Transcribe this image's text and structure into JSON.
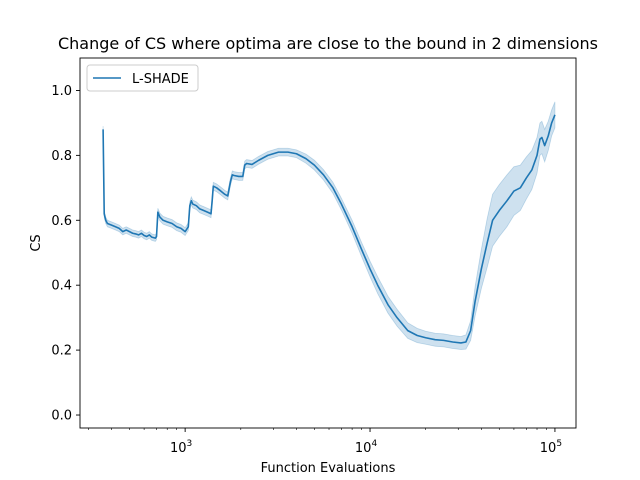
{
  "chart_data": {
    "type": "line",
    "title": "Change of CS where optima are close to the bound in 2 dimensions",
    "xlabel": "Function Evaluations",
    "ylabel": "CS",
    "xscale": "log",
    "xlim": [
      270,
      130000
    ],
    "ylim": [
      -0.04,
      1.1
    ],
    "grid": false,
    "legend_position": "top-left",
    "x_ticks": [
      {
        "value": 1000,
        "base": "10",
        "exp": "3"
      },
      {
        "value": 10000,
        "base": "10",
        "exp": "4"
      },
      {
        "value": 100000,
        "base": "10",
        "exp": "5"
      }
    ],
    "y_ticks": [
      {
        "value": 0.0,
        "label": "0.0"
      },
      {
        "value": 0.2,
        "label": "0.2"
      },
      {
        "value": 0.4,
        "label": "0.4"
      },
      {
        "value": 0.6,
        "label": "0.6"
      },
      {
        "value": 0.8,
        "label": "0.8"
      },
      {
        "value": 1.0,
        "label": "1.0"
      }
    ],
    "series": [
      {
        "name": "L-SHADE",
        "color": "#1f77b4",
        "x": [
          360,
          365,
          372,
          380,
          400,
          420,
          440,
          460,
          480,
          500,
          520,
          540,
          560,
          580,
          600,
          620,
          640,
          660,
          690,
          700,
          712,
          730,
          760,
          800,
          850,
          900,
          950,
          1000,
          1040,
          1060,
          1080,
          1100,
          1150,
          1200,
          1260,
          1320,
          1380,
          1400,
          1420,
          1480,
          1560,
          1640,
          1700,
          1760,
          1800,
          1840,
          1950,
          2050,
          2100,
          2150,
          2300,
          2500,
          2800,
          3200,
          3600,
          4000,
          4500,
          5000,
          5600,
          6300,
          7000,
          8000,
          9000,
          10000,
          11000,
          12500,
          14000,
          16000,
          18000,
          20000,
          22500,
          25000,
          28000,
          31000,
          33000,
          35000,
          37000,
          40000,
          43000,
          46000,
          50000,
          55000,
          60000,
          65000,
          70000,
          75000,
          80000,
          83000,
          85000,
          88000,
          92000,
          96000,
          100000
        ],
        "y": [
          0.88,
          0.62,
          0.6,
          0.59,
          0.585,
          0.58,
          0.575,
          0.565,
          0.57,
          0.565,
          0.56,
          0.558,
          0.555,
          0.56,
          0.553,
          0.55,
          0.555,
          0.548,
          0.545,
          0.55,
          0.625,
          0.61,
          0.6,
          0.595,
          0.59,
          0.58,
          0.575,
          0.565,
          0.58,
          0.645,
          0.66,
          0.65,
          0.645,
          0.635,
          0.63,
          0.625,
          0.62,
          0.66,
          0.705,
          0.7,
          0.69,
          0.68,
          0.675,
          0.72,
          0.74,
          0.738,
          0.735,
          0.735,
          0.77,
          0.775,
          0.772,
          0.785,
          0.8,
          0.81,
          0.81,
          0.805,
          0.79,
          0.77,
          0.74,
          0.7,
          0.65,
          0.58,
          0.51,
          0.45,
          0.4,
          0.34,
          0.3,
          0.26,
          0.245,
          0.238,
          0.232,
          0.23,
          0.225,
          0.222,
          0.225,
          0.26,
          0.35,
          0.45,
          0.53,
          0.6,
          0.63,
          0.66,
          0.69,
          0.7,
          0.73,
          0.755,
          0.8,
          0.85,
          0.855,
          0.83,
          0.86,
          0.9,
          0.925
        ],
        "band": [
          0.01,
          0.01,
          0.01,
          0.01,
          0.01,
          0.01,
          0.01,
          0.01,
          0.01,
          0.01,
          0.01,
          0.01,
          0.01,
          0.01,
          0.01,
          0.01,
          0.01,
          0.01,
          0.01,
          0.01,
          0.012,
          0.012,
          0.012,
          0.012,
          0.012,
          0.012,
          0.012,
          0.012,
          0.012,
          0.012,
          0.012,
          0.012,
          0.012,
          0.012,
          0.012,
          0.012,
          0.012,
          0.012,
          0.012,
          0.012,
          0.012,
          0.012,
          0.012,
          0.012,
          0.012,
          0.012,
          0.012,
          0.012,
          0.012,
          0.012,
          0.012,
          0.012,
          0.012,
          0.012,
          0.012,
          0.012,
          0.014,
          0.015,
          0.016,
          0.017,
          0.018,
          0.02,
          0.022,
          0.024,
          0.026,
          0.026,
          0.026,
          0.024,
          0.022,
          0.02,
          0.02,
          0.02,
          0.02,
          0.02,
          0.022,
          0.03,
          0.045,
          0.06,
          0.075,
          0.08,
          0.08,
          0.08,
          0.075,
          0.07,
          0.065,
          0.06,
          0.055,
          0.05,
          0.05,
          0.05,
          0.045,
          0.04,
          0.04
        ]
      }
    ]
  }
}
